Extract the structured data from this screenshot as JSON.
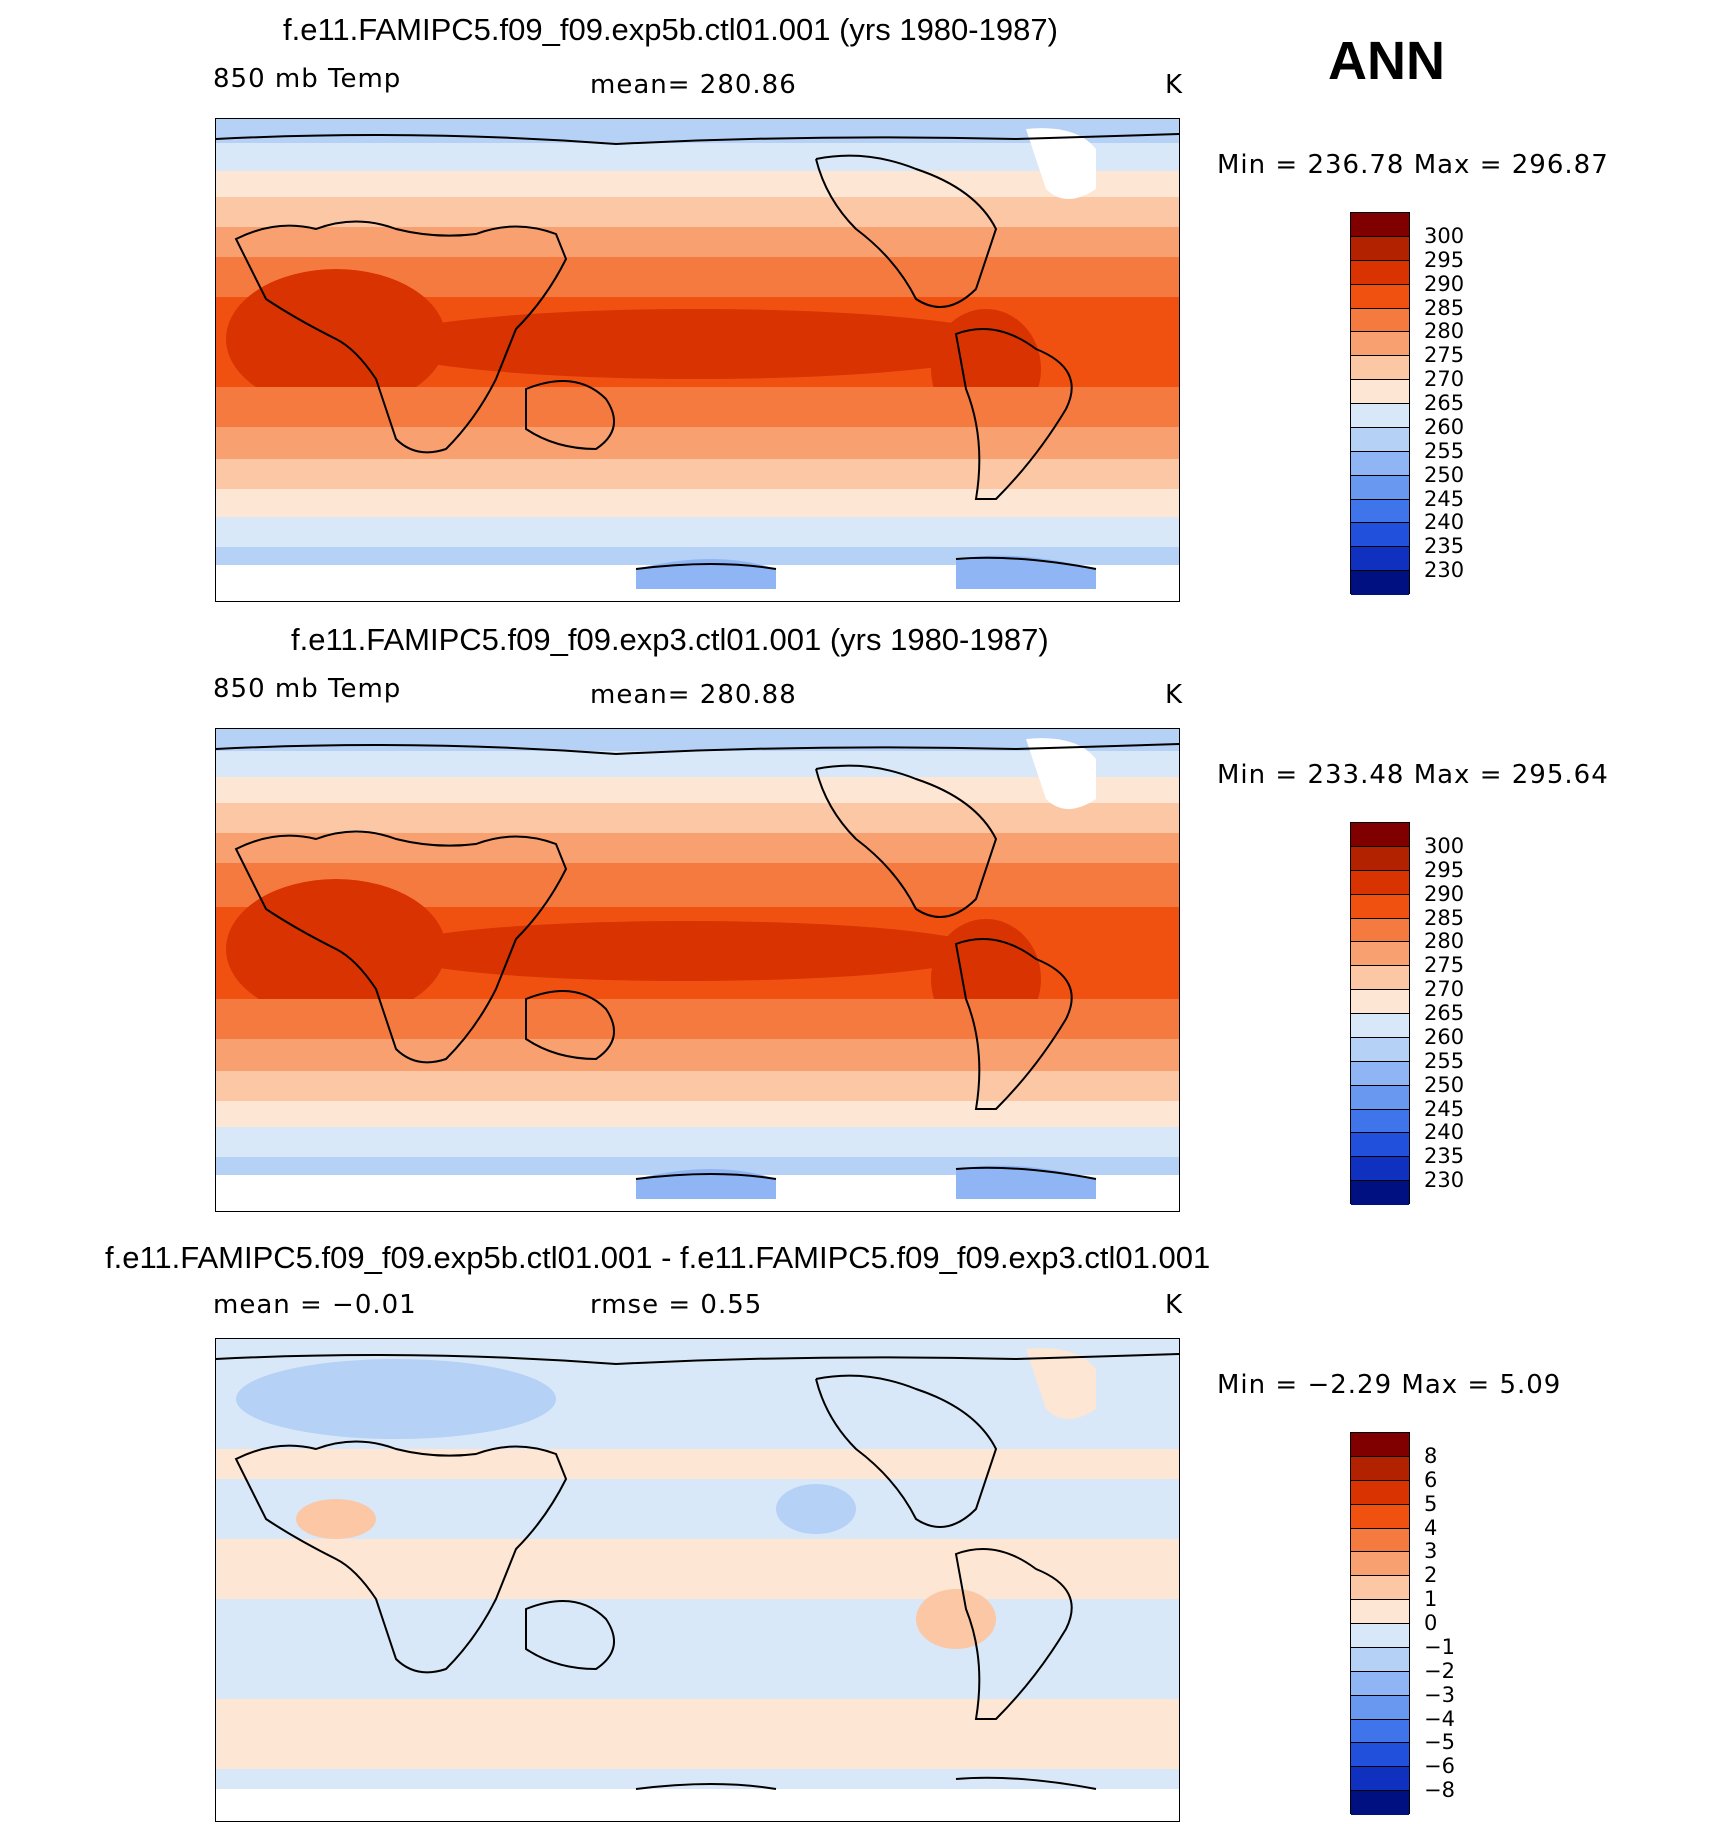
{
  "season": "ANN",
  "panels": [
    {
      "title": "f.e11.FAMIPC5.f09_f09.exp5b.ctl01.001 (yrs 1980-1987)",
      "variable": "850 mb Temp",
      "stat_label": "mean=  280.86",
      "units": "K",
      "minmax": "Min  =  236.78  Max  =  296.87",
      "colorbar_labels": [
        "300",
        "295",
        "290",
        "285",
        "280",
        "275",
        "270",
        "265",
        "260",
        "255",
        "250",
        "245",
        "240",
        "235",
        "230"
      ],
      "colorbar_colors": [
        "#800000",
        "#b22200",
        "#d83300",
        "#f05010",
        "#f57a40",
        "#f8a070",
        "#fbc7a4",
        "#fde6d4",
        "#d8e8f8",
        "#b6d1f6",
        "#8fb5f4",
        "#6898f0",
        "#3f74ea",
        "#2050dc",
        "#1030c0",
        "#001080"
      ]
    },
    {
      "title": "f.e11.FAMIPC5.f09_f09.exp3.ctl01.001 (yrs 1980-1987)",
      "variable": "850 mb Temp",
      "stat_label": "mean=  280.88",
      "units": "K",
      "minmax": "Min  =  233.48  Max  =  295.64",
      "colorbar_labels": [
        "300",
        "295",
        "290",
        "285",
        "280",
        "275",
        "270",
        "265",
        "260",
        "255",
        "250",
        "245",
        "240",
        "235",
        "230"
      ],
      "colorbar_colors": [
        "#800000",
        "#b22200",
        "#d83300",
        "#f05010",
        "#f57a40",
        "#f8a070",
        "#fbc7a4",
        "#fde6d4",
        "#d8e8f8",
        "#b6d1f6",
        "#8fb5f4",
        "#6898f0",
        "#3f74ea",
        "#2050dc",
        "#1030c0",
        "#001080"
      ]
    },
    {
      "title": "f.e11.FAMIPC5.f09_f09.exp5b.ctl01.001 - f.e11.FAMIPC5.f09_f09.exp3.ctl01.001",
      "stat_left": "mean =   −0.01",
      "stat_label": "rmse =     0.55",
      "units": "K",
      "minmax": "Min  =    −2.29  Max  =     5.09",
      "colorbar_labels": [
        "8",
        "6",
        "5",
        "4",
        "3",
        "2",
        "1",
        "0",
        "−1",
        "−2",
        "−3",
        "−4",
        "−5",
        "−6",
        "−8"
      ],
      "colorbar_colors": [
        "#800000",
        "#b22200",
        "#d83300",
        "#f05010",
        "#f57a40",
        "#f8a070",
        "#fbc7a4",
        "#fde6d4",
        "#d8e8f8",
        "#b6d1f6",
        "#8fb5f4",
        "#6898f0",
        "#3f74ea",
        "#2050dc",
        "#1030c0",
        "#001080"
      ]
    }
  ]
}
